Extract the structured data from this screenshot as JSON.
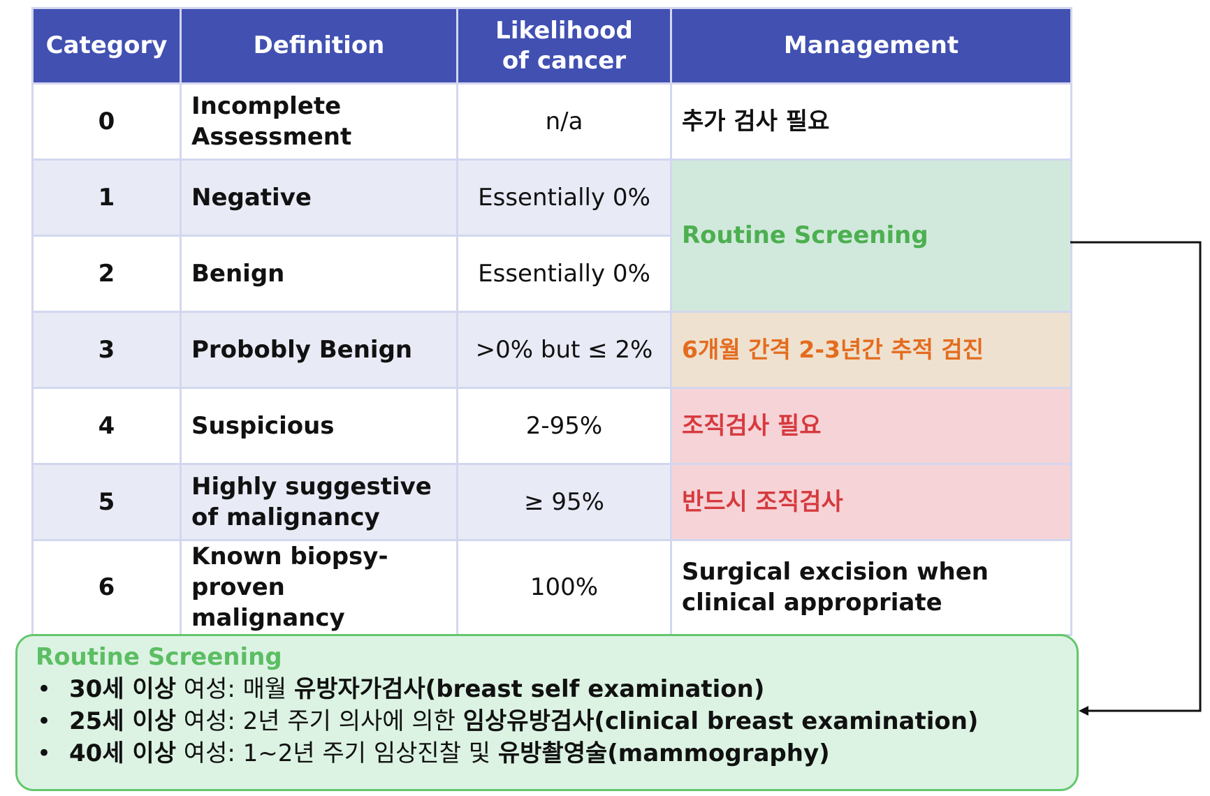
{
  "table": {
    "headers": [
      "Category",
      "Definition",
      "Likelihood\nof cancer",
      "Management"
    ],
    "rows": [
      {
        "category": "0",
        "definition": "Incomplete Assessment",
        "likelihood": "n/a",
        "management": "추가 검사 필요"
      },
      {
        "category": "1",
        "definition": "Negative",
        "likelihood": "Essentially 0%",
        "management": "Routine Screening"
      },
      {
        "category": "2",
        "definition": "Benign",
        "likelihood": "Essentially 0%",
        "management": ""
      },
      {
        "category": "3",
        "definition": "Probobly Benign",
        "likelihood": ">0% but ≤ 2%",
        "management": "6개월 간격 2-3년간 추적 검진"
      },
      {
        "category": "4",
        "definition": "Suspicious",
        "likelihood": "2-95%",
        "management": "조직검사 필요"
      },
      {
        "category": "5",
        "definition": "Highly suggestive of malignancy",
        "likelihood": "≥ 95%",
        "management": "반드시 조직검사"
      },
      {
        "category": "6",
        "definition": "Known biopsy-proven malignancy",
        "likelihood": "100%",
        "management": "Surgical excision when clinical appropriate"
      }
    ]
  },
  "screening": {
    "title": "Routine Screening",
    "items": [
      {
        "bullet": "•",
        "age": "30세 이상",
        "text": " 여성: 매월 ",
        "exam": "유방자가검사(breast self examination)"
      },
      {
        "bullet": "•",
        "age": "25세 이상",
        "text": " 여성: 2년 주기 의사에 의한 ",
        "exam": "임상유방검사(clinical breast examination)"
      },
      {
        "bullet": "•",
        "age": "40세 이상",
        "text": " 여성: 1~2년 주기 임상진찰 및 ",
        "exam": "유방촬영술(mammography)"
      }
    ]
  },
  "colors": {
    "header_bg": "#4150b1",
    "routine_green": "#4caf50",
    "followup_orange": "#e36c1e",
    "biopsy_red": "#d63a3e",
    "box_border": "#63c76b"
  }
}
